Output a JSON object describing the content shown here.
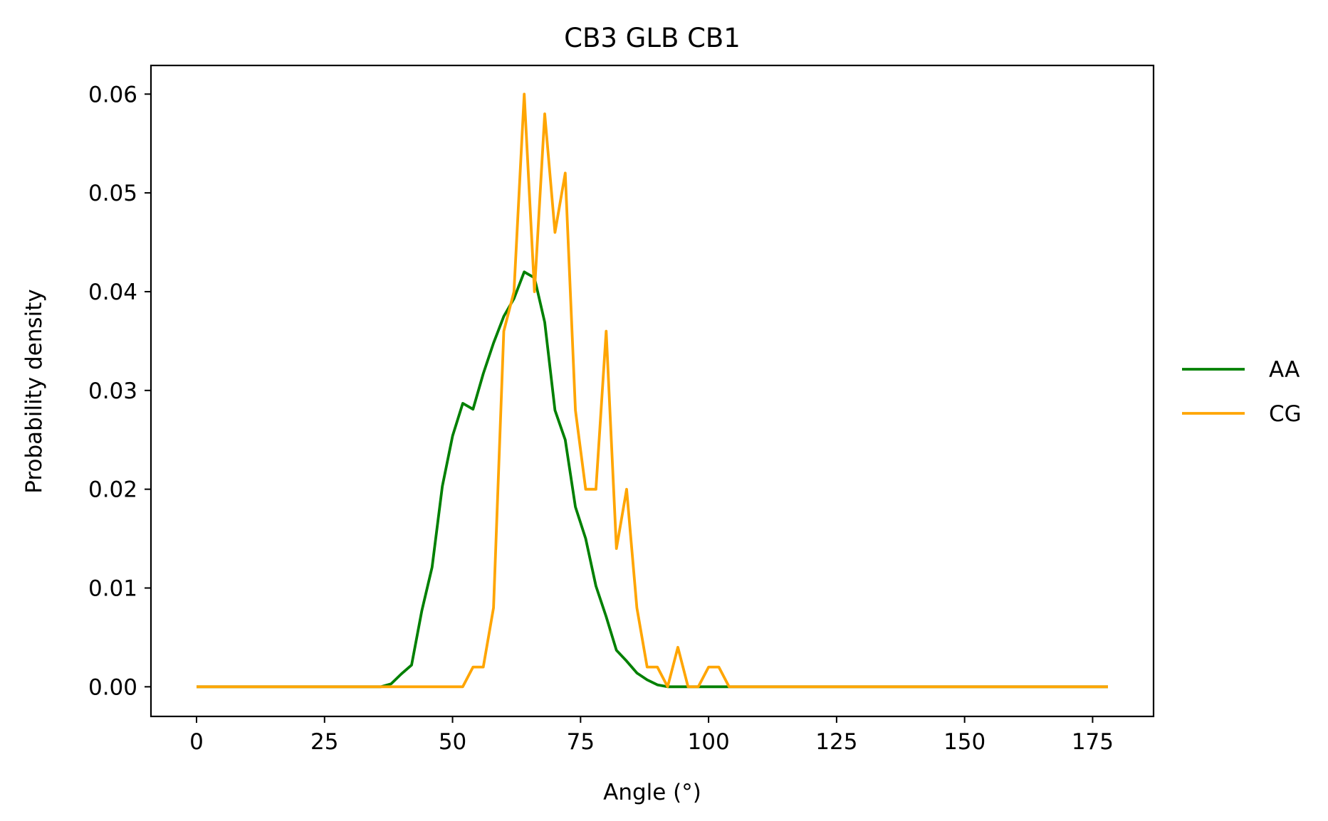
{
  "chart_data": {
    "type": "line",
    "title": "CB3 GLB CB1",
    "xlabel": "Angle (°)",
    "ylabel": "Probability density",
    "xlim": [
      -8.9,
      186.9
    ],
    "ylim": [
      -0.003,
      0.0629
    ],
    "xticks": [
      0,
      25,
      50,
      75,
      100,
      125,
      150,
      175
    ],
    "yticks": [
      0.0,
      0.01,
      0.02,
      0.03,
      0.04,
      0.05,
      0.06
    ],
    "ytick_labels": [
      "0.00",
      "0.01",
      "0.02",
      "0.03",
      "0.04",
      "0.05",
      "0.06"
    ],
    "grid": false,
    "legend_position": "center-right-outside",
    "x": [
      0,
      2,
      4,
      6,
      8,
      10,
      12,
      14,
      16,
      18,
      20,
      22,
      24,
      26,
      28,
      30,
      32,
      34,
      36,
      38,
      40,
      42,
      44,
      46,
      48,
      50,
      52,
      54,
      56,
      58,
      60,
      62,
      64,
      66,
      68,
      70,
      72,
      74,
      76,
      78,
      80,
      82,
      84,
      86,
      88,
      90,
      92,
      94,
      96,
      98,
      100,
      102,
      104,
      106,
      108,
      110,
      112,
      114,
      116,
      118,
      120,
      122,
      124,
      126,
      128,
      130,
      132,
      134,
      136,
      138,
      140,
      142,
      144,
      146,
      148,
      150,
      152,
      154,
      156,
      158,
      160,
      162,
      164,
      166,
      168,
      170,
      172,
      174,
      176,
      178
    ],
    "series": [
      {
        "name": "AA",
        "color": "#008000",
        "values": [
          0,
          0,
          0,
          0,
          0,
          0,
          0,
          0,
          0,
          0,
          0,
          0,
          0,
          0,
          0,
          0,
          0,
          0,
          0,
          0.0003,
          0.0013,
          0.0022,
          0.0077,
          0.0121,
          0.0203,
          0.0254,
          0.0287,
          0.0281,
          0.0317,
          0.0348,
          0.0375,
          0.0393,
          0.042,
          0.0414,
          0.0369,
          0.028,
          0.025,
          0.0182,
          0.015,
          0.0102,
          0.0071,
          0.0037,
          0.0026,
          0.0014,
          0.0007,
          0.0002,
          0,
          0,
          0,
          0,
          0,
          0,
          0,
          0,
          0,
          0,
          0,
          0,
          0,
          0,
          0,
          0,
          0,
          0,
          0,
          0,
          0,
          0,
          0,
          0,
          0,
          0,
          0,
          0,
          0,
          0,
          0,
          0,
          0,
          0,
          0,
          0,
          0,
          0,
          0,
          0,
          0,
          0,
          0,
          0
        ]
      },
      {
        "name": "CG",
        "color": "#ffa500",
        "values": [
          0,
          0,
          0,
          0,
          0,
          0,
          0,
          0,
          0,
          0,
          0,
          0,
          0,
          0,
          0,
          0,
          0,
          0,
          0,
          0,
          0,
          0,
          0,
          0,
          0,
          0,
          0,
          0.002,
          0.002,
          0.008,
          0.036,
          0.04,
          0.06,
          0.04,
          0.058,
          0.046,
          0.052,
          0.028,
          0.02,
          0.02,
          0.036,
          0.014,
          0.02,
          0.008,
          0.002,
          0.002,
          0,
          0.004,
          0,
          0,
          0.002,
          0.002,
          0,
          0,
          0,
          0,
          0,
          0,
          0,
          0,
          0,
          0,
          0,
          0,
          0,
          0,
          0,
          0,
          0,
          0,
          0,
          0,
          0,
          0,
          0,
          0,
          0,
          0,
          0,
          0,
          0,
          0,
          0,
          0,
          0,
          0,
          0,
          0,
          0,
          0
        ]
      }
    ]
  }
}
